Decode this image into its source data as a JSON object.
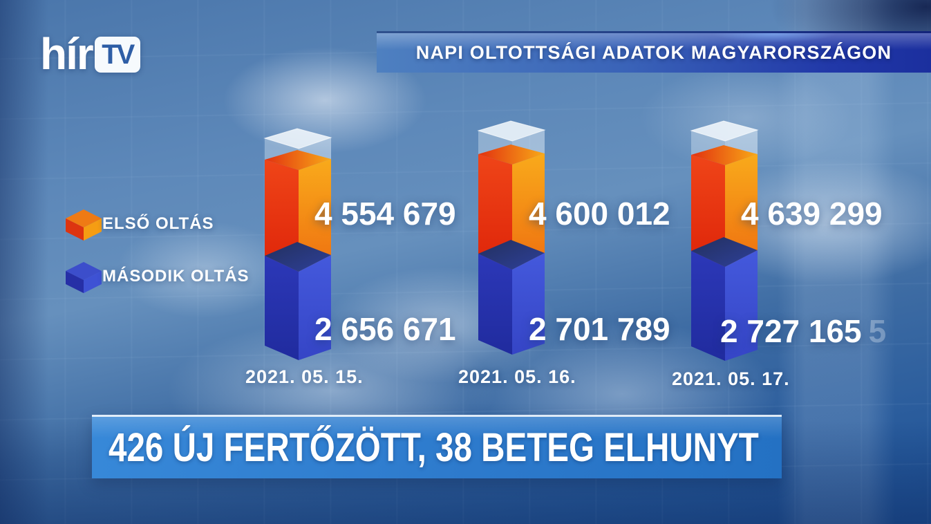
{
  "brand": {
    "name": "hírTV",
    "logo_text": "hír",
    "logo_badge": "TV"
  },
  "header": {
    "title": "NAPI OLTOTTSÁGI ADATOK MAGYARORSZÁGON"
  },
  "legend": {
    "first_label": "ELSŐ OLTÁS",
    "second_label": "MÁSODIK OLTÁS"
  },
  "bars": [
    {
      "date": "2021. 05. 15.",
      "first_formatted": "4 554 679",
      "second_formatted": "2 656 671"
    },
    {
      "date": "2021. 05. 16.",
      "first_formatted": "4 600 012",
      "second_formatted": "2 701 789"
    },
    {
      "date": "2021. 05. 17.",
      "first_formatted": "4 639 299",
      "second_formatted": "2 727 165",
      "ghost_digit": "5"
    }
  ],
  "ticker": {
    "headline": "426 ÚJ FERTŐZÖTT, 38 BETEG ELHUNYT"
  },
  "chart_data": {
    "type": "bar",
    "subtype": "3d-stacked-columns",
    "title": "NAPI OLTOTTSÁGI ADATOK MAGYARORSZÁGON",
    "categories": [
      "2021. 05. 15.",
      "2021. 05. 16.",
      "2021. 05. 17."
    ],
    "series": [
      {
        "name": "ELSŐ OLTÁS",
        "values": [
          4554679,
          4600012,
          4639299
        ],
        "color": "#f28018"
      },
      {
        "name": "MÁSODIK OLTÁS",
        "values": [
          2656671,
          2701789,
          2727165
        ],
        "color": "#3448cc"
      }
    ],
    "legend_position": "left",
    "value_labels": "right of each column segment",
    "axis": "none",
    "grid": false
  },
  "colors": {
    "first_dose_left_face": "#e83512",
    "first_dose_right_face": "#f59c16",
    "second_dose_left_face": "#2b36b5",
    "second_dose_right_face": "#4156da",
    "glass_top_face": "#f6fafe",
    "title_bar_left": "#4e80c0",
    "title_bar_right": "#1b2f9e",
    "ticker_background": "#2d7acc",
    "text": "#ffffff"
  }
}
